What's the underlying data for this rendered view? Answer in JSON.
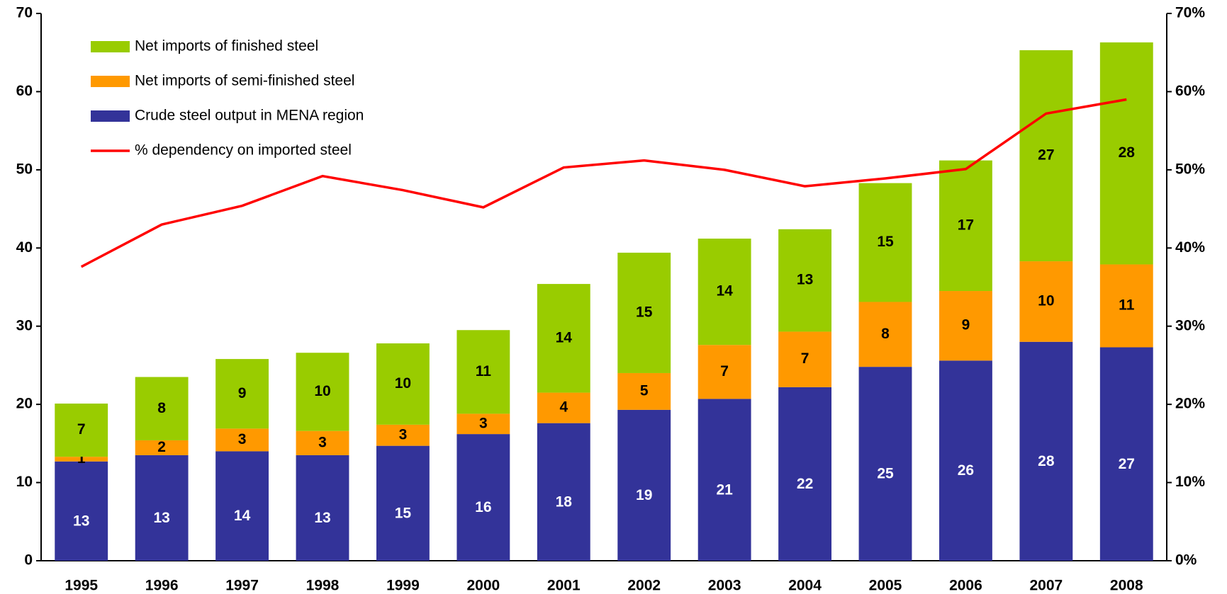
{
  "chart_data": {
    "type": "bar",
    "stacked": true,
    "categories": [
      "1995",
      "1996",
      "1997",
      "1998",
      "1999",
      "2000",
      "2001",
      "2002",
      "2003",
      "2004",
      "2005",
      "2006",
      "2007",
      "2008"
    ],
    "series": [
      {
        "name": "Crude steel output in MENA region",
        "color": "#333399",
        "values": [
          12.7,
          13.5,
          14.0,
          13.5,
          14.7,
          16.2,
          17.6,
          19.3,
          20.7,
          22.2,
          24.8,
          25.6,
          28.0,
          27.3
        ],
        "value_labels": [
          "13",
          "13",
          "14",
          "13",
          "15",
          "16",
          "18",
          "19",
          "21",
          "22",
          "25",
          "26",
          "28",
          "27"
        ]
      },
      {
        "name": "Net imports of semi-finished steel",
        "color": "#ff9900",
        "values": [
          0.6,
          1.9,
          2.9,
          3.1,
          2.7,
          2.6,
          3.9,
          4.7,
          6.9,
          7.1,
          8.3,
          8.9,
          10.3,
          10.6
        ],
        "value_labels": [
          "1",
          "2",
          "3",
          "3",
          "3",
          "3",
          "4",
          "5",
          "7",
          "7",
          "8",
          "9",
          "10",
          "11"
        ]
      },
      {
        "name": "Net imports of finished steel",
        "color": "#99cc00",
        "values": [
          6.8,
          8.1,
          8.9,
          10.0,
          10.4,
          10.7,
          13.9,
          15.4,
          13.6,
          13.1,
          15.2,
          16.7,
          27.0,
          28.4
        ],
        "value_labels": [
          "7",
          "8",
          "9",
          "10",
          "10",
          "11",
          "14",
          "15",
          "14",
          "13",
          "15",
          "17",
          "27",
          "28"
        ]
      },
      {
        "name": "% dependency on imported steel",
        "color": "#ff0000",
        "type": "line",
        "axis": "y2",
        "values": [
          37.6,
          43.0,
          45.4,
          49.2,
          47.4,
          45.2,
          50.3,
          51.2,
          50.0,
          47.9,
          48.9,
          50.1,
          57.2,
          59.0
        ]
      }
    ],
    "ylim": [
      0,
      70
    ],
    "yticks": [
      0,
      10,
      20,
      30,
      40,
      50,
      60,
      70
    ],
    "y2lim": [
      0,
      70
    ],
    "y2ticks": [
      {
        "value": 0,
        "label": "0%"
      },
      {
        "value": 10,
        "label": "10%"
      },
      {
        "value": 20,
        "label": "20%"
      },
      {
        "value": 30,
        "label": "30%"
      },
      {
        "value": 40,
        "label": "40%"
      },
      {
        "value": 50,
        "label": "50%"
      },
      {
        "value": 60,
        "label": "60%"
      },
      {
        "value": 70,
        "label": "70%"
      }
    ],
    "legend": "upper left",
    "grid": false
  }
}
